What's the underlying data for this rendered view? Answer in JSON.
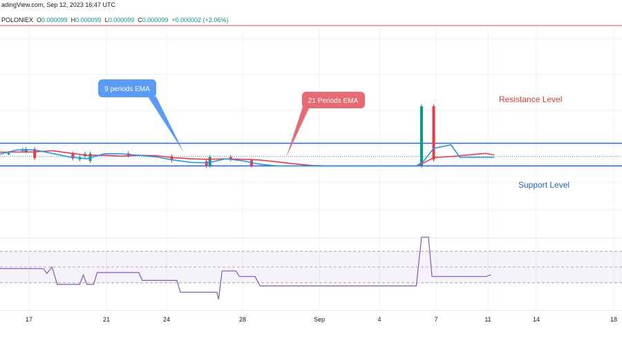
{
  "header": {
    "source": "adingView.com, Sep 12, 2023 16:47 UTC",
    "exchange": "POLONIEX",
    "open_k": "O",
    "open_v": "0.000099",
    "high_k": "H",
    "high_v": "0.000099",
    "low_k": "L",
    "low_v": "0.000099",
    "close_k": "C",
    "close_v": "0.000099",
    "change_v": "+0.000002 (+2.06%)"
  },
  "chart_data": {
    "type": "line",
    "x_ticks": [
      "17",
      "21",
      "24",
      "28",
      "Sep",
      "4",
      "7",
      "11",
      "14",
      "18"
    ],
    "candles": [
      {
        "x": 0.5,
        "o": 0.5,
        "c": 0.5,
        "dir": "up"
      },
      {
        "x": 1.3,
        "o": 0.58,
        "c": 0.59,
        "dir": "up"
      },
      {
        "x": 1.5,
        "o": 0.54,
        "c": 0.6,
        "dir": "up"
      },
      {
        "x": 2.0,
        "o": 0.6,
        "c": 0.37,
        "dir": "down"
      },
      {
        "x": 4.2,
        "o": 0.48,
        "c": 0.36,
        "dir": "down"
      },
      {
        "x": 4.6,
        "o": 0.34,
        "c": 0.39,
        "dir": "up"
      },
      {
        "x": 4.9,
        "o": 0.48,
        "c": 0.42,
        "dir": "up"
      },
      {
        "x": 5.2,
        "o": 0.3,
        "c": 0.48,
        "dir": "up"
      },
      {
        "x": 7.4,
        "o": 0.49,
        "c": 0.44,
        "dir": "down"
      },
      {
        "x": 9.9,
        "o": 0.41,
        "c": 0.31,
        "dir": "down"
      },
      {
        "x": 11.9,
        "o": 0.29,
        "c": 0.17,
        "dir": "down"
      },
      {
        "x": 12.1,
        "o": 0.17,
        "c": 0.4,
        "dir": "up"
      },
      {
        "x": 13.3,
        "o": 0.4,
        "c": 0.33,
        "dir": "down"
      },
      {
        "x": 14.5,
        "o": 0.31,
        "c": 0.17,
        "dir": "down"
      },
      {
        "x": 24.3,
        "o": 0.17,
        "c": 1.7,
        "dir": "up"
      },
      {
        "x": 25.0,
        "o": 1.7,
        "c": 0.33,
        "dir": "down"
      }
    ],
    "ema9": [
      {
        "x": 0,
        "y": 0.47
      },
      {
        "x": 1,
        "y": 0.58
      },
      {
        "x": 2,
        "y": 0.58
      },
      {
        "x": 3,
        "y": 0.49
      },
      {
        "x": 4,
        "y": 0.4
      },
      {
        "x": 5,
        "y": 0.35
      },
      {
        "x": 6,
        "y": 0.48
      },
      {
        "x": 7,
        "y": 0.48
      },
      {
        "x": 8,
        "y": 0.44
      },
      {
        "x": 9,
        "y": 0.4
      },
      {
        "x": 10,
        "y": 0.32
      },
      {
        "x": 11,
        "y": 0.26
      },
      {
        "x": 12,
        "y": 0.25
      },
      {
        "x": 13,
        "y": 0.35
      },
      {
        "x": 14,
        "y": 0.3
      },
      {
        "x": 15,
        "y": 0.21
      },
      {
        "x": 16,
        "y": 0.17
      },
      {
        "x": 20,
        "y": 0.17
      },
      {
        "x": 24,
        "y": 0.17
      },
      {
        "x": 24.4,
        "y": 0.28
      },
      {
        "x": 25,
        "y": 0.62
      },
      {
        "x": 26,
        "y": 0.71
      },
      {
        "x": 26.5,
        "y": 0.39
      },
      {
        "x": 28.5,
        "y": 0.39
      }
    ],
    "ema21": [
      {
        "x": 0,
        "y": 0.52
      },
      {
        "x": 2,
        "y": 0.53
      },
      {
        "x": 3,
        "y": 0.56
      },
      {
        "x": 4,
        "y": 0.5
      },
      {
        "x": 5,
        "y": 0.44
      },
      {
        "x": 6,
        "y": 0.44
      },
      {
        "x": 7,
        "y": 0.42
      },
      {
        "x": 8,
        "y": 0.44
      },
      {
        "x": 9,
        "y": 0.43
      },
      {
        "x": 10,
        "y": 0.38
      },
      {
        "x": 11,
        "y": 0.35
      },
      {
        "x": 12,
        "y": 0.34
      },
      {
        "x": 13,
        "y": 0.35
      },
      {
        "x": 14,
        "y": 0.34
      },
      {
        "x": 15,
        "y": 0.32
      },
      {
        "x": 16,
        "y": 0.27
      },
      {
        "x": 17,
        "y": 0.22
      },
      {
        "x": 18,
        "y": 0.18
      },
      {
        "x": 19,
        "y": 0.17
      },
      {
        "x": 24,
        "y": 0.17
      },
      {
        "x": 24.4,
        "y": 0.24
      },
      {
        "x": 25,
        "y": 0.38
      },
      {
        "x": 26,
        "y": 0.41
      },
      {
        "x": 27,
        "y": 0.45
      },
      {
        "x": 28,
        "y": 0.49
      },
      {
        "x": 28.5,
        "y": 0.45
      }
    ],
    "rsi": [
      {
        "x": 0,
        "y": 48
      },
      {
        "x": 2.5,
        "y": 48
      },
      {
        "x": 2.7,
        "y": 42
      },
      {
        "x": 3.0,
        "y": 50
      },
      {
        "x": 3.3,
        "y": 28
      },
      {
        "x": 4.6,
        "y": 28
      },
      {
        "x": 4.8,
        "y": 40
      },
      {
        "x": 5.0,
        "y": 28
      },
      {
        "x": 5.4,
        "y": 28
      },
      {
        "x": 5.6,
        "y": 43
      },
      {
        "x": 8.0,
        "y": 43
      },
      {
        "x": 8.2,
        "y": 33
      },
      {
        "x": 10.2,
        "y": 33
      },
      {
        "x": 10.4,
        "y": 18
      },
      {
        "x": 12.5,
        "y": 18
      },
      {
        "x": 12.6,
        "y": 9
      },
      {
        "x": 12.8,
        "y": 45
      },
      {
        "x": 13.6,
        "y": 45
      },
      {
        "x": 13.8,
        "y": 38
      },
      {
        "x": 14.7,
        "y": 38
      },
      {
        "x": 15.0,
        "y": 26
      },
      {
        "x": 24.0,
        "y": 26
      },
      {
        "x": 24.3,
        "y": 88
      },
      {
        "x": 24.7,
        "y": 88
      },
      {
        "x": 24.9,
        "y": 38
      },
      {
        "x": 28.0,
        "y": 38
      },
      {
        "x": 28.3,
        "y": 40
      }
    ],
    "rsi_levels": [
      70,
      50,
      30
    ],
    "resistance": 0.75,
    "support": 0.17
  },
  "labels": {
    "resistance": "Resistance Level",
    "support": "Support Level",
    "ema9": "9 periods EMA",
    "ema21": "21 Periods EMA"
  },
  "colors": {
    "up": "#089981",
    "down": "#f23645",
    "ema9": "#2196f3",
    "ema21": "#f23645",
    "level": "#2962ff",
    "rsi": "#7e57c2",
    "callout_blue": "#5b9bf8",
    "callout_red": "#e86b74",
    "resistance_text": "#e53935",
    "support_text": "#1e63d6",
    "top_line": "#d9534f"
  }
}
